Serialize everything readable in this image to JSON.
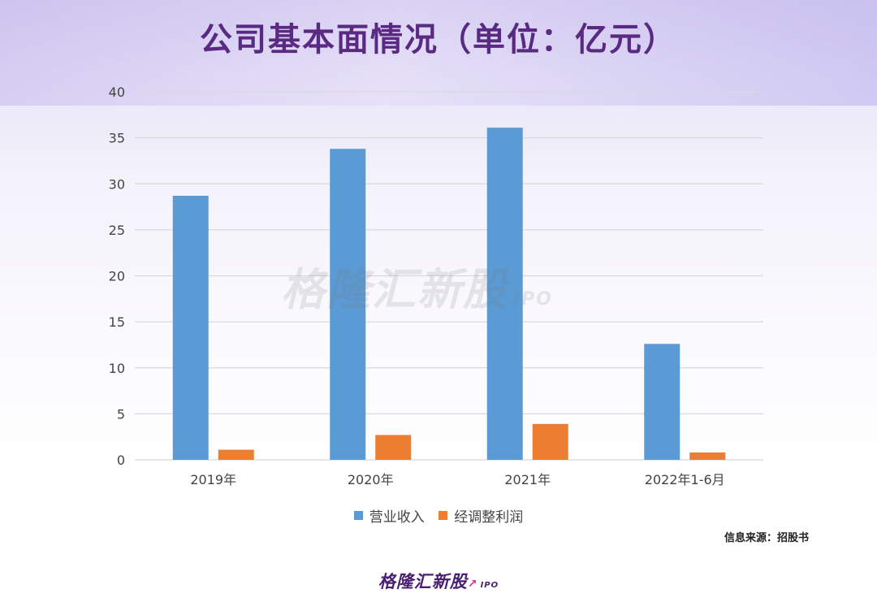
{
  "title": "公司基本面情况（单位：亿元）",
  "source": "信息来源：招股书",
  "watermark": {
    "text": "格隆汇新股",
    "sub": "IPO"
  },
  "footer_logo": {
    "text": "格隆汇新股",
    "sub": "IPO"
  },
  "colors": {
    "revenue": "#5b9bd5",
    "profit": "#ed7d31",
    "title": "#5a2a82",
    "grid": "#d9d9d9"
  },
  "chart_data": {
    "type": "bar",
    "categories": [
      "2019年",
      "2020年",
      "2021年",
      "2022年1-6月"
    ],
    "series": [
      {
        "name": "营业收入",
        "values": [
          28.7,
          33.8,
          36.1,
          12.6
        ]
      },
      {
        "name": "经调整利润",
        "values": [
          1.1,
          2.7,
          3.9,
          0.8
        ]
      }
    ],
    "ylim": [
      0,
      40
    ],
    "yticks": [
      0,
      5,
      10,
      15,
      20,
      25,
      30,
      35,
      40
    ],
    "grid": true,
    "legend_position": "bottom"
  }
}
